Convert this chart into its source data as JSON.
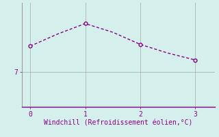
{
  "x": [
    0,
    0.5,
    1,
    1.5,
    2,
    2.5,
    3
  ],
  "y": [
    8.5,
    9.2,
    9.8,
    9.3,
    8.6,
    8.1,
    7.7
  ],
  "line_color": "#880088",
  "marker_points_x": [
    0,
    2,
    3
  ],
  "marker_points_y": [
    8.5,
    8.6,
    7.7
  ],
  "peak_x": [
    1
  ],
  "peak_y": [
    9.8
  ],
  "xlabel": "Windchill (Refroidissement éolien,°C)",
  "xticks": [
    0,
    1,
    2,
    3
  ],
  "ytick_vals": [
    7
  ],
  "ytick_labels": [
    "7"
  ],
  "background_color": "#d5f0ec",
  "grid_color": "#999999",
  "xlim": [
    -0.15,
    3.35
  ],
  "ylim": [
    5.0,
    11.0
  ],
  "line_width": 1.0,
  "marker_size": 3.5,
  "font_size": 7,
  "tick_color": "#880088",
  "spine_color": "#888888",
  "spine_bottom_color": "#880088"
}
